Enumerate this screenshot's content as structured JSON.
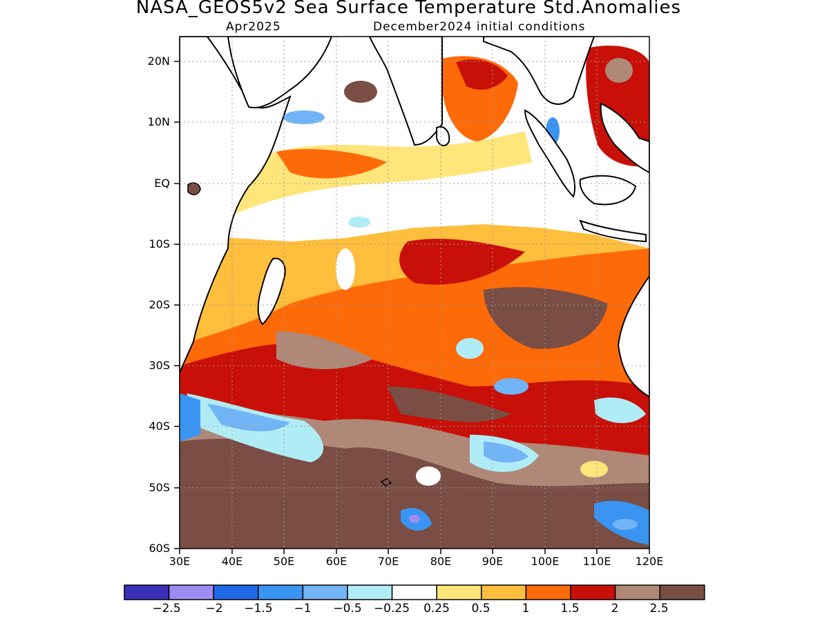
{
  "title": "NASA_GEOS5v2 Sea Surface Temperature Std.Anomalies",
  "subtitle_left": "Apr2025",
  "subtitle_right": "December2024 initial conditions",
  "lat_labels": [
    "20N",
    "10N",
    "EQ",
    "10S",
    "20S",
    "30S",
    "40S",
    "50S",
    "60S"
  ],
  "lon_labels": [
    "30E",
    "40E",
    "50E",
    "60E",
    "70E",
    "80E",
    "90E",
    "100E",
    "110E",
    "120E"
  ],
  "colorbar": {
    "colors": [
      "#3a2fb8",
      "#9c8cf2",
      "#1f68e6",
      "#3a94f2",
      "#72b4f6",
      "#b0ecf6",
      "#ffffff",
      "#ffe57a",
      "#ffbe3c",
      "#ff6a08",
      "#c81008",
      "#b08878",
      "#7a4e44"
    ],
    "labels": [
      "−2.5",
      "−2",
      "−1.5",
      "−1",
      "−0.5",
      "−0.25",
      "0.25",
      "0.5",
      "1",
      "1.5",
      "2",
      "2.5"
    ]
  },
  "colors": {
    "land": "#ffffff",
    "coastline": "#000000",
    "grid": "#999999"
  }
}
